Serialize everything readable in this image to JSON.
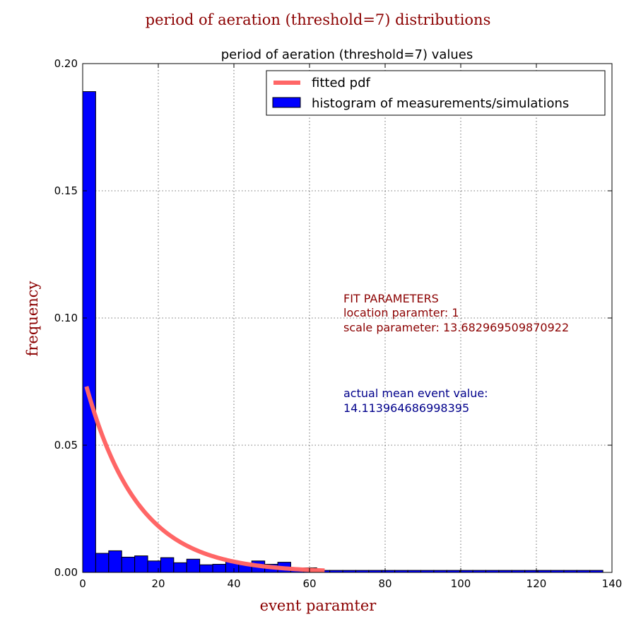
{
  "figure": {
    "suptitle": "period of aeration (threshold=7) distributions"
  },
  "chart_data": {
    "type": "bar",
    "title": "period of aeration (threshold=7) values",
    "xlabel": "event paramter",
    "ylabel": "frequency",
    "xlim": [
      0,
      140
    ],
    "ylim": [
      0,
      0.2
    ],
    "xticks": [
      "0",
      "20",
      "40",
      "60",
      "80",
      "100",
      "120",
      "140"
    ],
    "yticks": [
      "0.00",
      "0.05",
      "0.10",
      "0.15",
      "0.20"
    ],
    "grid": true,
    "legend_position": "top-right",
    "legend": [
      "fitted pdf",
      "histogram of measurements/simulations"
    ],
    "histogram": {
      "name": "histogram of measurements/simulations",
      "color": "#0000ff",
      "bin_width": 3.44,
      "bin_starts": [
        0,
        3.44,
        6.88,
        10.32,
        13.76,
        17.2,
        20.64,
        24.08,
        27.52,
        30.96,
        34.4,
        37.84,
        41.28,
        44.72,
        48.16,
        51.6,
        55.04,
        58.48,
        61.92,
        65.36,
        68.8,
        72.24,
        75.68,
        79.12,
        82.56,
        86.0,
        89.44,
        92.88,
        96.32,
        99.76,
        103.2,
        106.64,
        110.08,
        113.52,
        116.96,
        120.4,
        123.84,
        127.28,
        130.72,
        134.16
      ],
      "values": [
        0.189,
        0.0075,
        0.0085,
        0.006,
        0.0065,
        0.0045,
        0.0058,
        0.0038,
        0.0052,
        0.003,
        0.0032,
        0.0042,
        0.0035,
        0.0045,
        0.0032,
        0.004,
        0.0018,
        0.0018,
        0.0008,
        0.0008,
        0.0008,
        0.0008,
        0.0008,
        0.0008,
        0.0008,
        0.0008,
        0.0008,
        0.0008,
        0.0008,
        0.0008,
        0.0008,
        0.0008,
        0.0008,
        0.0008,
        0.0008,
        0.0008,
        0.0008,
        0.0008,
        0.0008,
        0.0008
      ]
    },
    "fitted_pdf": {
      "name": "fitted pdf",
      "color": "#ff6666",
      "x_range": [
        1,
        64
      ],
      "location": 1,
      "scale": 13.682969509870922
    },
    "annotations": {
      "fit_header": "FIT PARAMETERS",
      "fit_location": "location paramter: 1",
      "fit_scale": "scale parameter: 13.682969509870922",
      "mean_label": "actual mean event value:",
      "mean_value": "14.113964686998395"
    }
  }
}
